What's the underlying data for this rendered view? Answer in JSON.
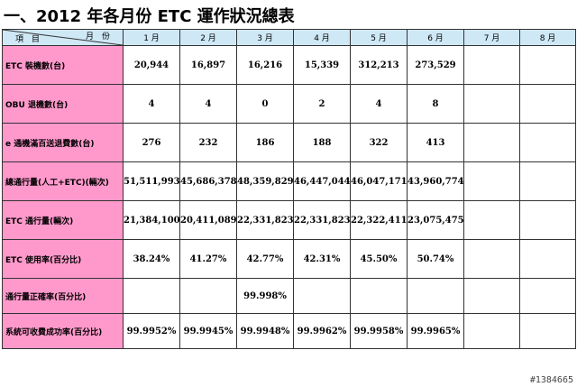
{
  "title": "一、2012 年各月份 ETC 運作狀況總表",
  "header": {
    "corner_item": "項　目",
    "corner_month": "月　份",
    "months": [
      "1 月",
      "2 月",
      "3 月",
      "4 月",
      "5 月",
      "6 月",
      "7 月",
      "8 月"
    ]
  },
  "rows": [
    {
      "label": "ETC 裝機數(台)",
      "values": [
        "20,944",
        "16,897",
        "16,216",
        "15,339",
        "312,213",
        "273,529",
        "",
        ""
      ]
    },
    {
      "label": "OBU 退機數(台)",
      "values": [
        "4",
        "4",
        "0",
        "2",
        "4",
        "8",
        "",
        ""
      ]
    },
    {
      "label": "e 通機滿百送退費數(台)",
      "values": [
        "276",
        "232",
        "186",
        "188",
        "322",
        "413",
        "",
        ""
      ]
    },
    {
      "label": "總通行量(人工+ETC)(輛次)",
      "values": [
        "51,511,993",
        "45,686,378",
        "48,359,829",
        "46,447,044",
        "46,047,171",
        "43,960,774",
        "",
        ""
      ]
    },
    {
      "label": "ETC 通行量(輛次)",
      "values": [
        "21,384,100",
        "20,411,089",
        "22,331,823",
        "22,331,823",
        "22,322,411",
        "23,075,475",
        "",
        ""
      ]
    },
    {
      "label": "ETC 使用率(百分比)",
      "values": [
        "38.24%",
        "41.27%",
        "42.77%",
        "42.31%",
        "45.50%",
        "50.74%",
        "",
        ""
      ]
    },
    {
      "label": "通行量正確率(百分比)",
      "values": [
        "",
        "",
        "99.998%",
        "",
        "",
        "",
        "",
        ""
      ]
    },
    {
      "label": "系統可收費成功率(百分比)",
      "values": [
        "99.9952%",
        "99.9945%",
        "99.9948%",
        "99.9962%",
        "99.9958%",
        "99.9965%",
        "",
        ""
      ]
    }
  ],
  "watermark": "#1384665"
}
